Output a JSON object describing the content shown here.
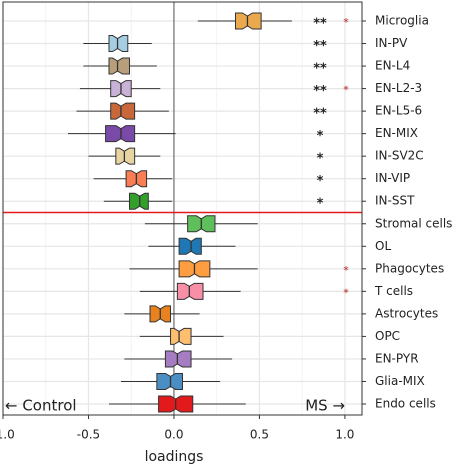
{
  "chart_data": {
    "type": "boxplot",
    "x_label": "loadings",
    "annotations": {
      "left": "← Control",
      "right": "MS →"
    },
    "categories": [
      "Microglia",
      "IN-PV",
      "EN-L4",
      "EN-L2-3",
      "EN-L5-6",
      "EN-MIX",
      "IN-SV2C",
      "IN-VIP",
      "IN-SST",
      "Stromal cells",
      "OL",
      "Phagocytes",
      "T cells",
      "Astrocytes",
      "OPC",
      "EN-PYR",
      "Glia-MIX",
      "Endo cells"
    ],
    "low": [
      0.14,
      -0.53,
      -0.53,
      -0.55,
      -0.57,
      -0.62,
      -0.5,
      -0.47,
      -0.41,
      -0.17,
      -0.15,
      -0.26,
      -0.2,
      -0.29,
      -0.2,
      -0.29,
      -0.31,
      -0.38
    ],
    "q1": [
      0.36,
      -0.38,
      -0.38,
      -0.37,
      -0.37,
      -0.4,
      -0.34,
      -0.28,
      -0.26,
      0.08,
      0.03,
      0.03,
      0.02,
      -0.14,
      -0.02,
      -0.05,
      -0.1,
      -0.09
    ],
    "median": [
      0.43,
      -0.33,
      -0.33,
      -0.31,
      -0.31,
      -0.31,
      -0.29,
      -0.22,
      -0.2,
      0.16,
      0.1,
      0.12,
      0.09,
      -0.08,
      0.03,
      0.02,
      -0.02,
      0.01
    ],
    "q3": [
      0.51,
      -0.27,
      -0.26,
      -0.25,
      -0.23,
      -0.23,
      -0.23,
      -0.16,
      -0.15,
      0.24,
      0.16,
      0.21,
      0.17,
      -0.02,
      0.1,
      0.1,
      0.05,
      0.11
    ],
    "high": [
      0.69,
      -0.13,
      -0.1,
      -0.08,
      -0.03,
      0.01,
      -0.08,
      -0.01,
      -0.01,
      0.49,
      0.36,
      0.49,
      0.39,
      0.15,
      0.29,
      0.34,
      0.27,
      0.42
    ],
    "colors": [
      "#e9a94c",
      "#a6cee3",
      "#b89f7c",
      "#cab2d6",
      "#c8683a",
      "#7a4aa8",
      "#e8d4a0",
      "#fb7d54",
      "#33a02c",
      "#5fbf5a",
      "#1f78b4",
      "#ff9e40",
      "#f78fa7",
      "#e8821e",
      "#fdbf6f",
      "#a67cc2",
      "#4a8ec4",
      "#e31a1c"
    ],
    "stars": [
      "**",
      "**",
      "**",
      "**",
      "**",
      "*",
      "*",
      "*",
      "*",
      null,
      null,
      null,
      null,
      null,
      null,
      null,
      null,
      null
    ],
    "red_stars": [
      "*",
      null,
      null,
      "*",
      null,
      null,
      null,
      null,
      null,
      null,
      null,
      "*",
      "*",
      null,
      null,
      null,
      null,
      null
    ],
    "xlim": [
      -1.0,
      1.1
    ],
    "xticks": [
      {
        "value": -1.0,
        "label": "-1.0"
      },
      -0.5,
      {
        "value": 0,
        "label": "0.0"
      },
      0.5,
      {
        "value": 1.0,
        "label": "1.0"
      }
    ],
    "grid": true
  }
}
